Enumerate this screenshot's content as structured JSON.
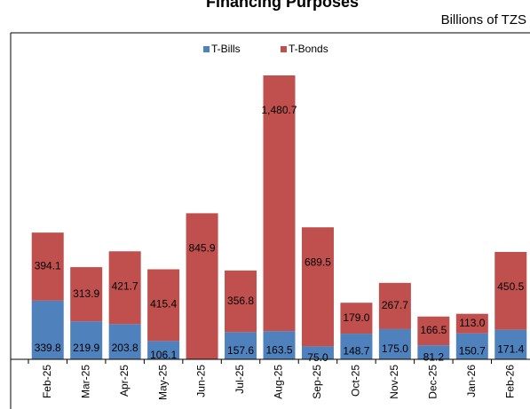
{
  "chart_data": {
    "type": "stacked_bar",
    "title": "Financing Purposes",
    "subtitle": "Billions of TZS",
    "categories": [
      "Feb-25",
      "Mar-25",
      "Apr-25",
      "May-25",
      "Jun-25",
      "Jul-25",
      "Aug-25",
      "Sep-25",
      "Oct-25",
      "Nov-25",
      "Dec-25",
      "Jan-26",
      "Feb-26"
    ],
    "series": [
      {
        "name": "T-Bills",
        "color": "#4f81bd",
        "values": [
          339.8,
          219.9,
          203.8,
          106.1,
          null,
          157.6,
          163.5,
          75.0,
          148.7,
          175.0,
          81.2,
          150.7,
          171.4
        ],
        "value_labels": [
          "339.8",
          "219.9",
          "203.8",
          "106.1",
          null,
          "157.6",
          "163.5",
          "75.0",
          "148.7",
          "175.0",
          "81.2",
          "150.7",
          "171.4"
        ]
      },
      {
        "name": "T-Bonds",
        "color": "#c0504d",
        "values": [
          394.1,
          313.9,
          421.7,
          415.4,
          845.9,
          356.8,
          1480.7,
          689.5,
          179.0,
          267.7,
          166.5,
          113.0,
          450.5
        ],
        "value_labels": [
          "394.1",
          "313.9",
          "421.7",
          "415.4",
          "845.9",
          "356.8",
          "1,480.7",
          "689.5",
          "179.0",
          "267.7",
          "166.5",
          "113.0",
          "450.5"
        ]
      }
    ],
    "legend": "top"
  }
}
